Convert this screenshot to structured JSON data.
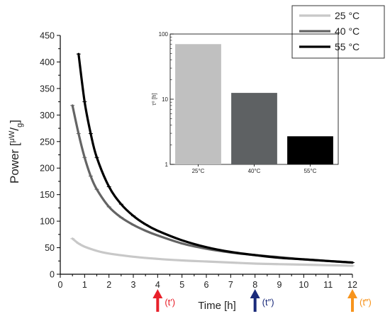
{
  "chart_data": [
    {
      "type": "line",
      "xlabel": "Time [h]",
      "ylabel_parts": {
        "main": "Power [",
        "sup": "μW",
        "slash": "/",
        "sub": "g",
        "close": "]"
      },
      "xlim": [
        0,
        12
      ],
      "ylim": [
        0,
        450
      ],
      "x_ticks": [
        0,
        1,
        2,
        3,
        4,
        5,
        6,
        7,
        8,
        9,
        10,
        11,
        12
      ],
      "y_ticks": [
        0,
        50,
        100,
        150,
        200,
        250,
        300,
        350,
        400,
        450
      ],
      "legend_position": "top-right",
      "series": [
        {
          "name": "25 °C",
          "color": "#c8c8c8",
          "x": [
            0.5,
            0.75,
            1,
            1.5,
            2,
            3,
            4,
            5,
            6,
            7,
            8,
            9,
            10,
            11,
            12
          ],
          "y": [
            67,
            58,
            52,
            44,
            39,
            33,
            29,
            26,
            24,
            22,
            20,
            19,
            18,
            17,
            16
          ]
        },
        {
          "name": "40 °C",
          "color": "#646464",
          "x": [
            0.5,
            0.75,
            1,
            1.25,
            1.5,
            2,
            2.5,
            3,
            3.5,
            4,
            5,
            6,
            7,
            8,
            9,
            10,
            11,
            12
          ],
          "y": [
            318,
            265,
            220,
            185,
            160,
            127,
            107,
            93,
            82,
            73,
            58,
            48,
            41,
            36,
            32,
            28,
            25,
            22
          ]
        },
        {
          "name": "55 °C",
          "color": "#000000",
          "x": [
            0.75,
            1,
            1.25,
            1.5,
            2,
            2.5,
            3,
            3.5,
            4,
            5,
            6,
            7,
            8,
            9,
            10,
            11,
            12
          ],
          "y": [
            415,
            325,
            265,
            220,
            165,
            132,
            110,
            94,
            82,
            64,
            51,
            42,
            36,
            31,
            28,
            25,
            22
          ]
        }
      ],
      "annotations": [
        {
          "label": "(t′)",
          "x": 4,
          "color": "#e8202a"
        },
        {
          "label": "(t″)",
          "x": 8,
          "color": "#1a2a7a"
        },
        {
          "label": "(t‴)",
          "x": 12,
          "color": "#f7941d"
        }
      ]
    },
    {
      "type": "bar",
      "inset": true,
      "ylabel": "τ⁰ [h]",
      "y_scale": "log",
      "ylim": [
        1,
        100
      ],
      "y_ticks": [
        1,
        10,
        100
      ],
      "categories": [
        "25°C",
        "40°C",
        "55°C"
      ],
      "values": [
        70,
        12.5,
        2.7
      ],
      "colors": [
        "#c0c0c0",
        "#5e6163",
        "#000000"
      ]
    }
  ]
}
